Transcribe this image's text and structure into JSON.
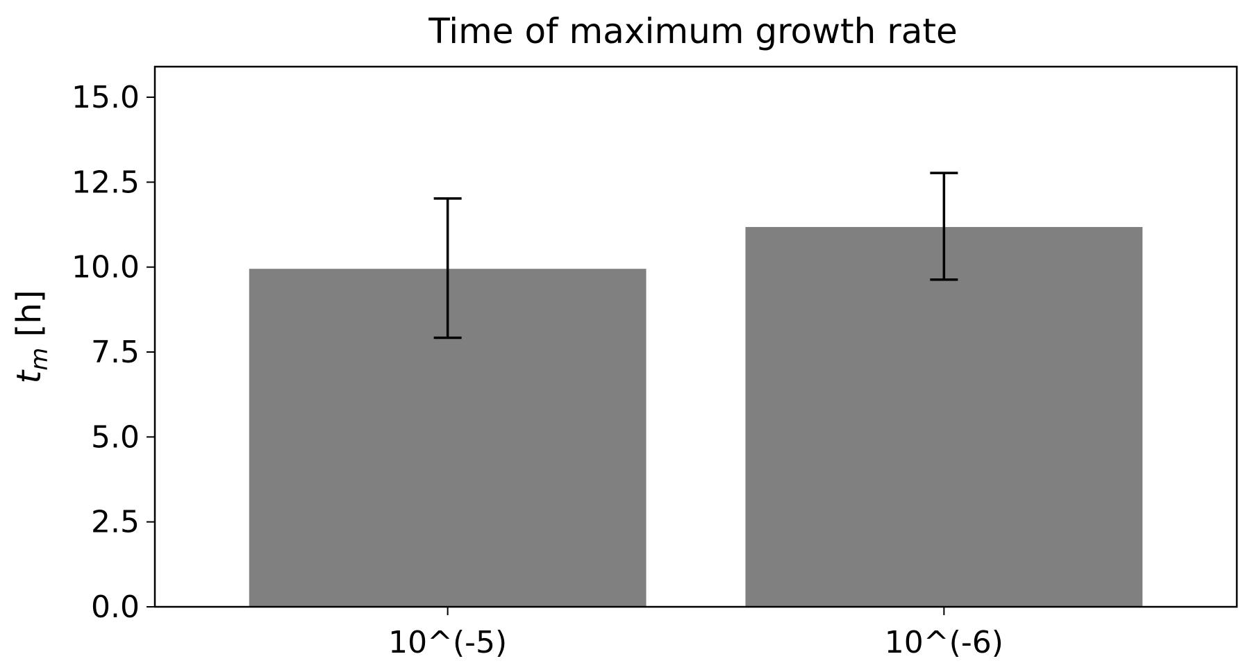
{
  "chart_data": {
    "type": "bar",
    "title": "Time of maximum growth rate",
    "xlabel": "",
    "ylabel": {
      "var": "t",
      "sub": "m",
      "unit": " [h]"
    },
    "categories": [
      "10^(-5)",
      "10^(-6)"
    ],
    "values": [
      9.95,
      11.18
    ],
    "error_low": [
      7.92,
      9.63
    ],
    "error_high": [
      12.02,
      12.77
    ],
    "ylim": [
      0,
      15.9
    ],
    "yticks": [
      0.0,
      2.5,
      5.0,
      7.5,
      10.0,
      12.5,
      15.0
    ],
    "ytick_labels": [
      "0.0",
      "2.5",
      "5.0",
      "7.5",
      "10.0",
      "12.5",
      "15.0"
    ],
    "grid": false,
    "legend": "none",
    "bar_color": "#808080",
    "error_color": "#000000"
  }
}
